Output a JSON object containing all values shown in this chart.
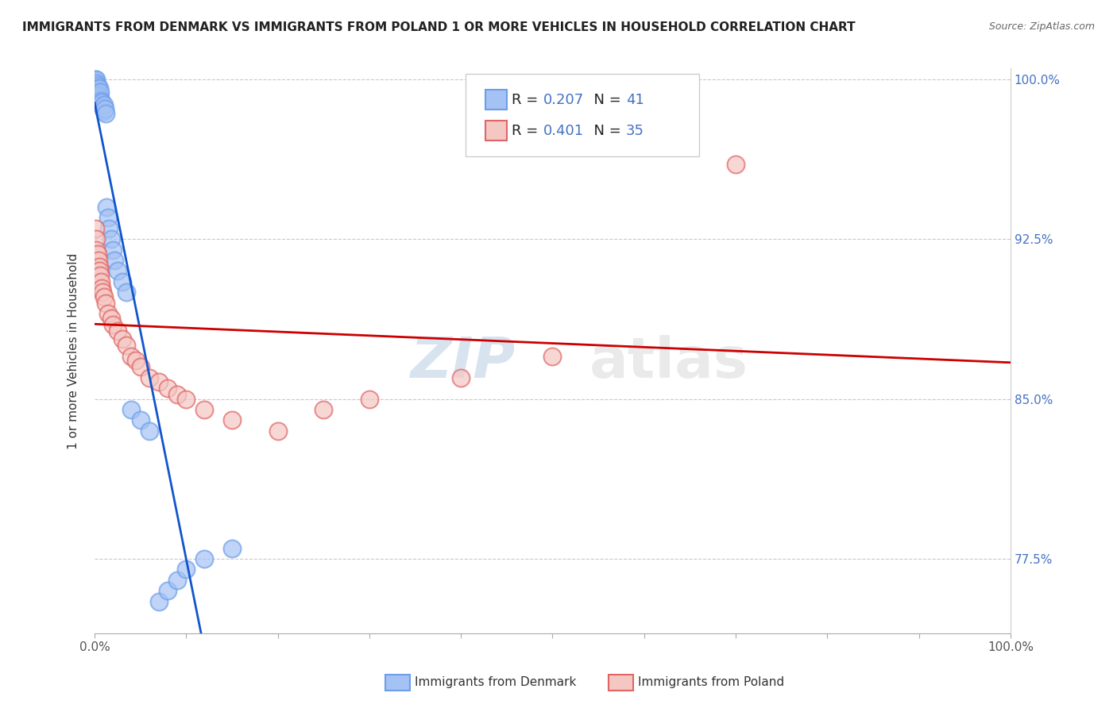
{
  "title": "IMMIGRANTS FROM DENMARK VS IMMIGRANTS FROM POLAND 1 OR MORE VEHICLES IN HOUSEHOLD CORRELATION CHART",
  "source": "Source: ZipAtlas.com",
  "ylabel": "1 or more Vehicles in Household",
  "xlim": [
    0.0,
    1.0
  ],
  "ylim": [
    0.74,
    1.005
  ],
  "ytick_vals": [
    0.775,
    0.85,
    0.925,
    1.0
  ],
  "ytick_labels": [
    "77.5%",
    "85.0%",
    "92.5%",
    "100.0%"
  ],
  "xtick_labels": [
    "0.0%",
    "100.0%"
  ],
  "denmark_color": "#a4c2f4",
  "denmark_edge_color": "#6d9eeb",
  "poland_color": "#f4c7c3",
  "poland_edge_color": "#e06666",
  "denmark_line_color": "#1155cc",
  "poland_line_color": "#cc0000",
  "denmark_R": 0.207,
  "denmark_N": 41,
  "poland_R": 0.401,
  "poland_N": 35,
  "legend_label_denmark": "Immigrants from Denmark",
  "legend_label_poland": "Immigrants from Poland",
  "watermark_zip": "ZIP",
  "watermark_atlas": "atlas",
  "background_color": "#ffffff",
  "denmark_x": [
    0.001,
    0.001,
    0.001,
    0.002,
    0.002,
    0.002,
    0.003,
    0.003,
    0.004,
    0.004,
    0.005,
    0.005,
    0.005,
    0.006,
    0.006,
    0.007,
    0.007,
    0.008,
    0.009,
    0.01,
    0.01,
    0.011,
    0.012,
    0.013,
    0.015,
    0.016,
    0.018,
    0.02,
    0.022,
    0.025,
    0.03,
    0.035,
    0.04,
    0.05,
    0.06,
    0.07,
    0.08,
    0.09,
    0.1,
    0.12,
    0.15
  ],
  "denmark_y": [
    1.0,
    0.999,
    0.997,
    1.0,
    0.998,
    0.995,
    0.997,
    0.996,
    0.995,
    0.994,
    0.996,
    0.993,
    0.992,
    0.991,
    0.994,
    0.99,
    0.988,
    0.989,
    0.987,
    0.985,
    0.988,
    0.986,
    0.984,
    0.94,
    0.935,
    0.93,
    0.925,
    0.92,
    0.915,
    0.91,
    0.905,
    0.9,
    0.845,
    0.84,
    0.835,
    0.755,
    0.76,
    0.765,
    0.77,
    0.775,
    0.78
  ],
  "poland_x": [
    0.001,
    0.002,
    0.002,
    0.003,
    0.004,
    0.005,
    0.005,
    0.006,
    0.007,
    0.008,
    0.009,
    0.01,
    0.012,
    0.015,
    0.018,
    0.02,
    0.025,
    0.03,
    0.035,
    0.04,
    0.045,
    0.05,
    0.06,
    0.07,
    0.08,
    0.09,
    0.1,
    0.12,
    0.15,
    0.2,
    0.25,
    0.3,
    0.4,
    0.5,
    0.7
  ],
  "poland_y": [
    0.93,
    0.925,
    0.92,
    0.918,
    0.915,
    0.912,
    0.91,
    0.908,
    0.905,
    0.902,
    0.9,
    0.898,
    0.895,
    0.89,
    0.888,
    0.885,
    0.882,
    0.878,
    0.875,
    0.87,
    0.868,
    0.865,
    0.86,
    0.858,
    0.855,
    0.852,
    0.85,
    0.845,
    0.84,
    0.835,
    0.845,
    0.85,
    0.86,
    0.87,
    0.96
  ]
}
